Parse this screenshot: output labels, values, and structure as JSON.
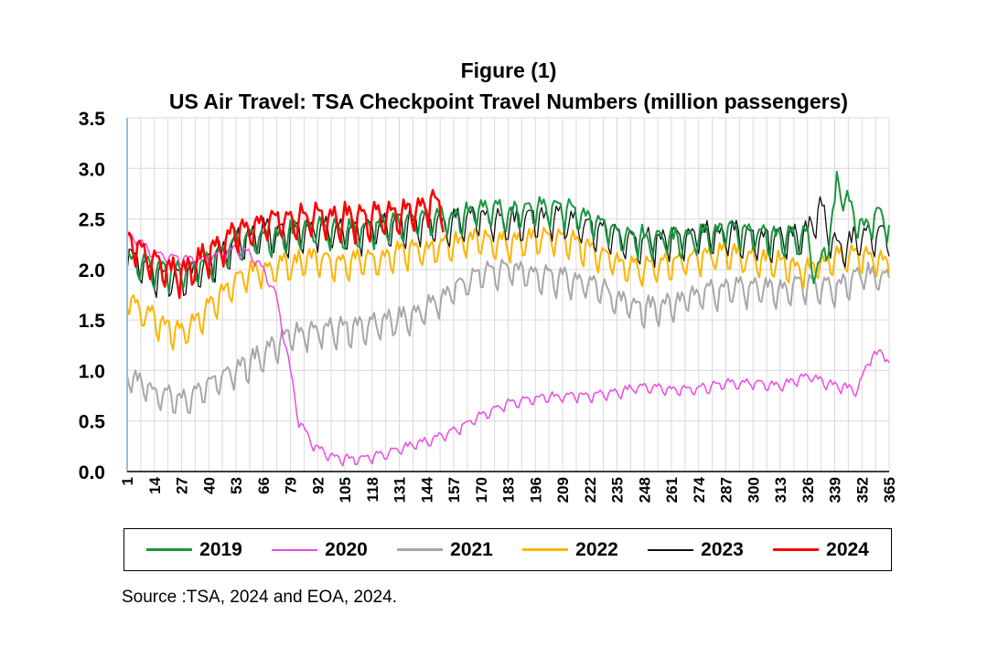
{
  "chart_data": {
    "type": "line",
    "title": "Figure (1)",
    "subtitle": "US Air Travel: TSA Checkpoint Travel Numbers (million passengers)",
    "xlabel": "",
    "ylabel": "",
    "xlim": [
      1,
      365
    ],
    "ylim": [
      0,
      3.5
    ],
    "yticks": [
      "0.0",
      "0.5",
      "1.0",
      "1.5",
      "2.0",
      "2.5",
      "3.0",
      "3.5"
    ],
    "xticks": [
      1,
      14,
      27,
      40,
      53,
      66,
      79,
      92,
      105,
      118,
      131,
      144,
      157,
      170,
      183,
      196,
      209,
      222,
      235,
      248,
      261,
      274,
      287,
      300,
      313,
      326,
      339,
      352,
      365
    ],
    "grid": true,
    "legend_position": "bottom",
    "series": [
      {
        "name": "2019",
        "color": "#1a9641",
        "width": 2,
        "days": [
          1,
          365
        ],
        "weekly_amplitude": 0.17,
        "trend": [
          [
            1,
            2.1
          ],
          [
            14,
            2.0
          ],
          [
            27,
            1.95
          ],
          [
            40,
            2.05
          ],
          [
            53,
            2.25
          ],
          [
            66,
            2.3
          ],
          [
            79,
            2.35
          ],
          [
            92,
            2.4
          ],
          [
            105,
            2.35
          ],
          [
            118,
            2.4
          ],
          [
            131,
            2.45
          ],
          [
            144,
            2.5
          ],
          [
            157,
            2.5
          ],
          [
            170,
            2.6
          ],
          [
            183,
            2.55
          ],
          [
            196,
            2.6
          ],
          [
            209,
            2.6
          ],
          [
            222,
            2.5
          ],
          [
            235,
            2.35
          ],
          [
            248,
            2.3
          ],
          [
            261,
            2.3
          ],
          [
            274,
            2.3
          ],
          [
            287,
            2.4
          ],
          [
            300,
            2.35
          ],
          [
            313,
            2.3
          ],
          [
            326,
            2.3
          ],
          [
            330,
            1.9
          ],
          [
            338,
            2.45
          ],
          [
            340,
            2.85
          ],
          [
            352,
            2.4
          ],
          [
            360,
            2.55
          ],
          [
            365,
            2.4
          ]
        ]
      },
      {
        "name": "2020",
        "color": "#ee4ae6",
        "width": 1.5,
        "days": [
          1,
          365
        ],
        "weekly_amplitude": 0.06,
        "trend": [
          [
            1,
            2.35
          ],
          [
            14,
            2.15
          ],
          [
            27,
            2.1
          ],
          [
            40,
            2.1
          ],
          [
            53,
            2.2
          ],
          [
            60,
            2.15
          ],
          [
            66,
            2.0
          ],
          [
            72,
            1.75
          ],
          [
            79,
            1.0
          ],
          [
            83,
            0.5
          ],
          [
            90,
            0.25
          ],
          [
            100,
            0.13
          ],
          [
            110,
            0.12
          ],
          [
            120,
            0.15
          ],
          [
            131,
            0.22
          ],
          [
            144,
            0.3
          ],
          [
            157,
            0.4
          ],
          [
            170,
            0.55
          ],
          [
            183,
            0.68
          ],
          [
            196,
            0.72
          ],
          [
            209,
            0.75
          ],
          [
            222,
            0.75
          ],
          [
            235,
            0.78
          ],
          [
            248,
            0.85
          ],
          [
            261,
            0.8
          ],
          [
            274,
            0.82
          ],
          [
            287,
            0.87
          ],
          [
            300,
            0.88
          ],
          [
            313,
            0.85
          ],
          [
            326,
            0.95
          ],
          [
            339,
            0.85
          ],
          [
            350,
            0.8
          ],
          [
            355,
            1.1
          ],
          [
            362,
            1.2
          ],
          [
            365,
            1.05
          ]
        ]
      },
      {
        "name": "2021",
        "color": "#a8a8a8",
        "width": 2,
        "days": [
          1,
          365
        ],
        "weekly_amplitude": 0.16,
        "trend": [
          [
            1,
            0.95
          ],
          [
            14,
            0.78
          ],
          [
            27,
            0.7
          ],
          [
            40,
            0.85
          ],
          [
            53,
            1.0
          ],
          [
            66,
            1.15
          ],
          [
            79,
            1.35
          ],
          [
            92,
            1.4
          ],
          [
            105,
            1.4
          ],
          [
            118,
            1.45
          ],
          [
            131,
            1.5
          ],
          [
            144,
            1.6
          ],
          [
            157,
            1.8
          ],
          [
            170,
            1.95
          ],
          [
            183,
            2.0
          ],
          [
            196,
            1.95
          ],
          [
            209,
            1.9
          ],
          [
            222,
            1.85
          ],
          [
            235,
            1.7
          ],
          [
            248,
            1.6
          ],
          [
            261,
            1.65
          ],
          [
            274,
            1.75
          ],
          [
            287,
            1.8
          ],
          [
            300,
            1.8
          ],
          [
            313,
            1.8
          ],
          [
            326,
            1.85
          ],
          [
            339,
            1.8
          ],
          [
            352,
            1.95
          ],
          [
            365,
            1.9
          ]
        ]
      },
      {
        "name": "2022",
        "color": "#ffb400",
        "width": 2,
        "days": [
          1,
          365
        ],
        "weekly_amplitude": 0.16,
        "trend": [
          [
            1,
            1.7
          ],
          [
            14,
            1.5
          ],
          [
            27,
            1.35
          ],
          [
            40,
            1.6
          ],
          [
            53,
            1.9
          ],
          [
            66,
            2.0
          ],
          [
            79,
            2.05
          ],
          [
            92,
            2.1
          ],
          [
            105,
            2.05
          ],
          [
            118,
            2.1
          ],
          [
            131,
            2.15
          ],
          [
            144,
            2.2
          ],
          [
            157,
            2.25
          ],
          [
            170,
            2.3
          ],
          [
            183,
            2.25
          ],
          [
            196,
            2.3
          ],
          [
            209,
            2.3
          ],
          [
            222,
            2.2
          ],
          [
            235,
            2.05
          ],
          [
            248,
            2.0
          ],
          [
            261,
            2.05
          ],
          [
            274,
            2.1
          ],
          [
            287,
            2.15
          ],
          [
            300,
            2.1
          ],
          [
            313,
            2.05
          ],
          [
            326,
            2.0
          ],
          [
            339,
            2.1
          ],
          [
            352,
            2.15
          ],
          [
            365,
            2.05
          ]
        ]
      },
      {
        "name": "2023",
        "color": "#111111",
        "width": 1.3,
        "days": [
          1,
          365
        ],
        "weekly_amplitude": 0.2,
        "trend": [
          [
            1,
            2.15
          ],
          [
            14,
            1.95
          ],
          [
            27,
            1.9
          ],
          [
            40,
            2.05
          ],
          [
            53,
            2.25
          ],
          [
            66,
            2.35
          ],
          [
            79,
            2.35
          ],
          [
            92,
            2.4
          ],
          [
            105,
            2.35
          ],
          [
            118,
            2.4
          ],
          [
            131,
            2.45
          ],
          [
            144,
            2.45
          ],
          [
            157,
            2.45
          ],
          [
            170,
            2.5
          ],
          [
            183,
            2.45
          ],
          [
            196,
            2.5
          ],
          [
            209,
            2.5
          ],
          [
            222,
            2.4
          ],
          [
            235,
            2.3
          ],
          [
            248,
            2.25
          ],
          [
            261,
            2.3
          ],
          [
            274,
            2.35
          ],
          [
            287,
            2.35
          ],
          [
            300,
            2.3
          ],
          [
            313,
            2.3
          ],
          [
            326,
            2.35
          ],
          [
            332,
            2.6
          ],
          [
            339,
            2.2
          ],
          [
            352,
            2.3
          ],
          [
            365,
            2.35
          ]
        ]
      },
      {
        "name": "2024",
        "color": "#ff0000",
        "width": 2.5,
        "days": [
          1,
          152
        ],
        "weekly_amplitude": 0.2,
        "trend": [
          [
            1,
            2.3
          ],
          [
            14,
            2.05
          ],
          [
            27,
            1.95
          ],
          [
            40,
            2.15
          ],
          [
            53,
            2.35
          ],
          [
            66,
            2.45
          ],
          [
            79,
            2.5
          ],
          [
            92,
            2.5
          ],
          [
            105,
            2.5
          ],
          [
            118,
            2.5
          ],
          [
            131,
            2.55
          ],
          [
            144,
            2.65
          ],
          [
            152,
            2.6
          ]
        ]
      }
    ]
  },
  "legend": [
    "2019",
    "2020",
    "2021",
    "2022",
    "2023",
    "2024"
  ],
  "source": "Source :TSA, 2024 and EOA, 2024."
}
